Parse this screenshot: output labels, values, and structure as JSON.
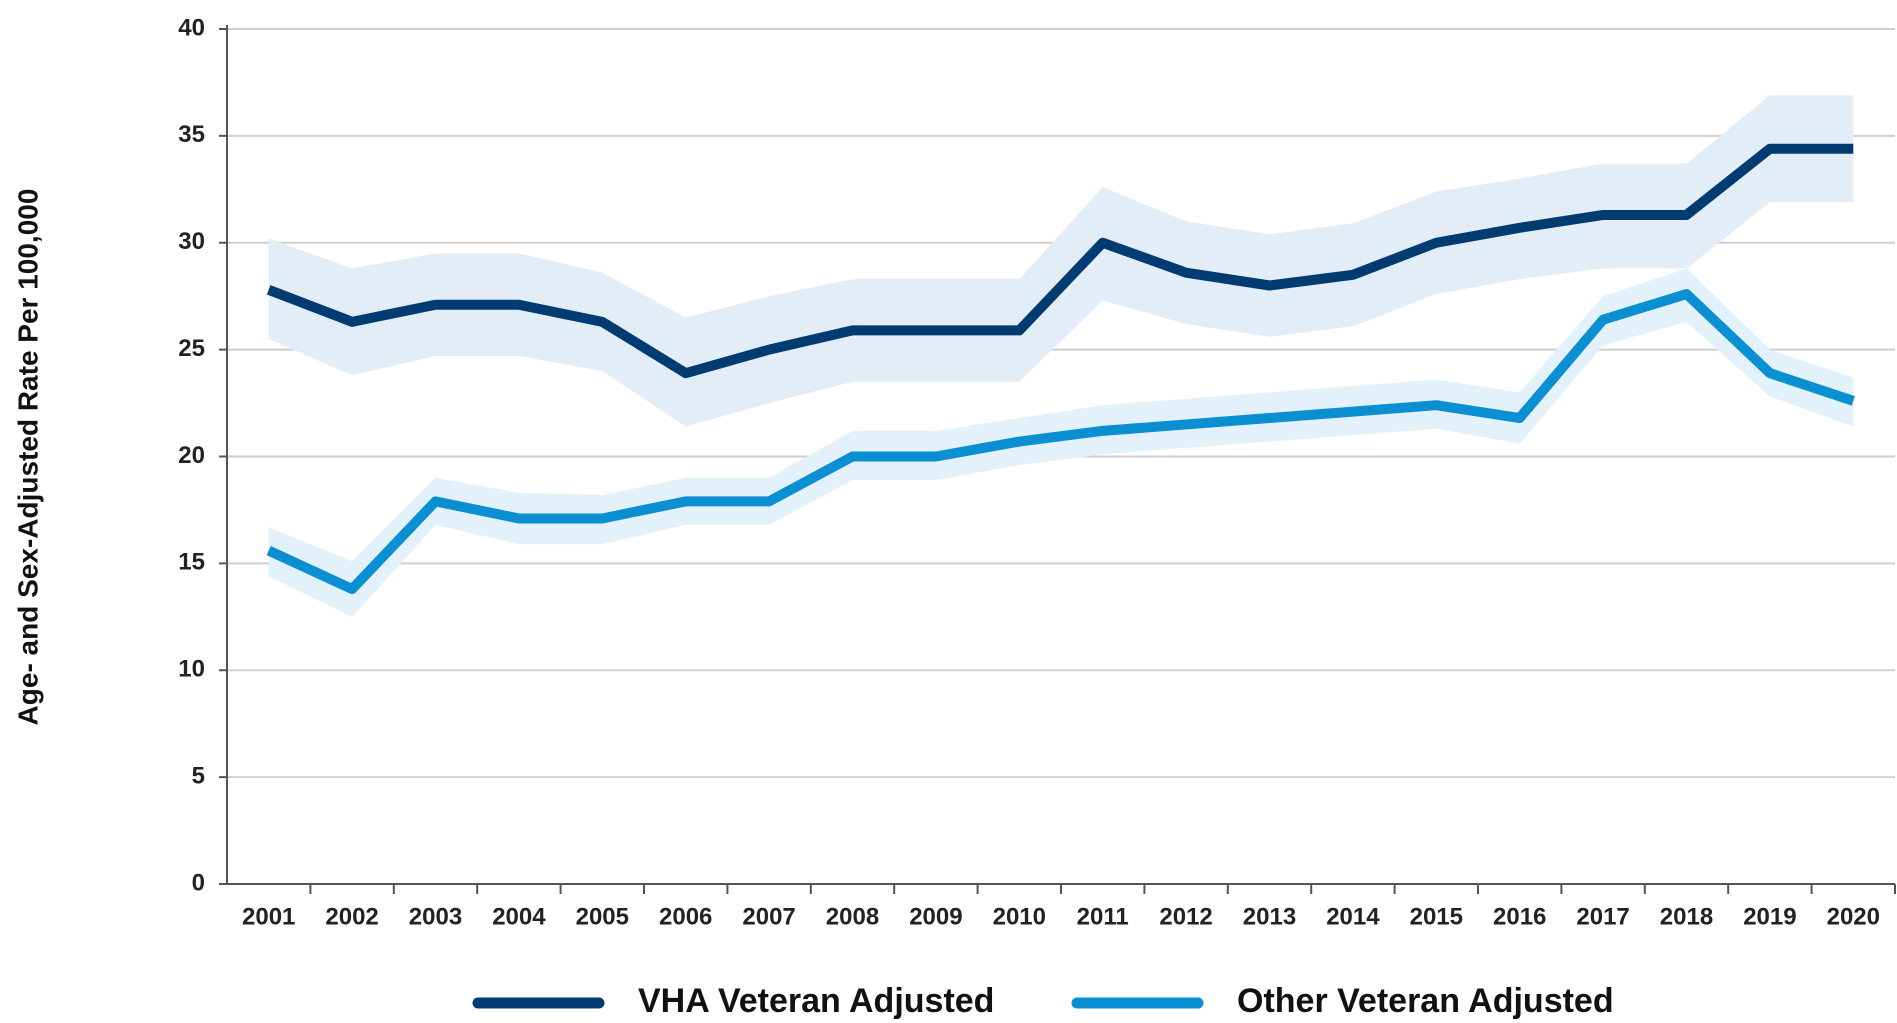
{
  "chart_data": {
    "type": "line",
    "y_label": "Age- and Sex-Adjusted Rate Per 100,000",
    "categories": [
      "2001",
      "2002",
      "2003",
      "2004",
      "2005",
      "2006",
      "2007",
      "2008",
      "2009",
      "2010",
      "2011",
      "2012",
      "2013",
      "2014",
      "2015",
      "2016",
      "2017",
      "2018",
      "2019",
      "2020"
    ],
    "series": [
      {
        "name": "VHA Veteran Adjusted",
        "color": "#003b71",
        "band_color": "#e2edf8",
        "values": [
          27.8,
          26.3,
          27.1,
          27.1,
          26.3,
          23.9,
          25.0,
          25.9,
          25.9,
          25.9,
          30.0,
          28.6,
          28.0,
          28.5,
          30.0,
          30.7,
          31.3,
          31.3,
          34.4,
          34.4
        ],
        "upper": [
          30.2,
          28.8,
          29.5,
          29.5,
          28.6,
          26.5,
          27.5,
          28.3,
          28.3,
          28.3,
          32.6,
          31.0,
          30.4,
          30.9,
          32.4,
          33.0,
          33.7,
          33.7,
          36.9,
          36.9
        ],
        "lower": [
          25.5,
          23.8,
          24.7,
          24.7,
          24.0,
          21.4,
          22.5,
          23.5,
          23.5,
          23.5,
          27.3,
          26.2,
          25.6,
          26.1,
          27.6,
          28.3,
          28.8,
          28.8,
          31.9,
          31.9
        ]
      },
      {
        "name": "Other Veteran Adjusted",
        "color": "#0a8fd2",
        "band_color": "#e3f1fb",
        "values": [
          15.6,
          13.8,
          17.9,
          17.1,
          17.1,
          17.9,
          17.9,
          20.0,
          20.0,
          20.7,
          21.2,
          21.5,
          21.8,
          22.1,
          22.4,
          21.8,
          26.4,
          27.6,
          23.9,
          22.6
        ],
        "upper": [
          16.7,
          15.1,
          19.0,
          18.3,
          18.2,
          19.0,
          19.0,
          21.2,
          21.2,
          21.8,
          22.4,
          22.7,
          23.0,
          23.3,
          23.6,
          23.0,
          27.5,
          28.8,
          25.0,
          23.7
        ],
        "lower": [
          14.4,
          12.5,
          16.8,
          15.9,
          15.9,
          16.8,
          16.8,
          18.9,
          18.9,
          19.6,
          20.1,
          20.4,
          20.7,
          21.0,
          21.3,
          20.6,
          25.2,
          26.3,
          22.8,
          21.4
        ]
      }
    ],
    "ylim": [
      0,
      40
    ],
    "yticks": [
      0,
      5,
      10,
      15,
      20,
      25,
      30,
      35,
      40
    ],
    "grid": true,
    "legend": "bottom"
  }
}
